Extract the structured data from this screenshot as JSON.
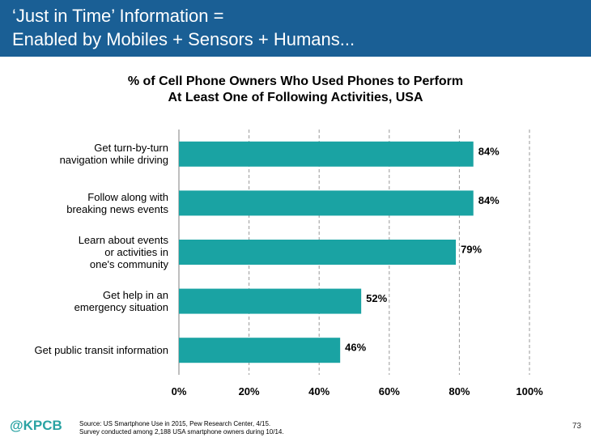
{
  "header": {
    "line1": "‘Just in Time’ Information =",
    "line2": "Enabled by Mobiles + Sensors + Humans..."
  },
  "chart_data": {
    "type": "bar",
    "orientation": "horizontal",
    "title_line1": "% of Cell Phone Owners Who Used Phones to Perform",
    "title_line2": "At Least One of Following Activities, USA",
    "categories": [
      [
        "Get turn-by-turn",
        "navigation while driving"
      ],
      [
        "Follow along with",
        "breaking news events"
      ],
      [
        "Learn about events",
        "or activities in",
        "one's community"
      ],
      [
        "Get help in an",
        "emergency situation"
      ],
      [
        "Get public transit information"
      ]
    ],
    "values": [
      84,
      84,
      79,
      52,
      46
    ],
    "value_labels": [
      "84%",
      "84%",
      "79%",
      "52%",
      "46%"
    ],
    "xlim": [
      0,
      100
    ],
    "xticks": [
      "0%",
      "20%",
      "40%",
      "60%",
      "80%",
      "100%"
    ],
    "grid": "vertical dashed",
    "bar_color": "#1aa3a3"
  },
  "footer": {
    "logo": "@KPCB",
    "source_line1": "Source: US Smartphone Use in 2015, Pew Research Center, 4/15.",
    "source_line2": "Survey conducted among 2,188 USA smartphone owners during 10/14.",
    "page_number": "73"
  }
}
